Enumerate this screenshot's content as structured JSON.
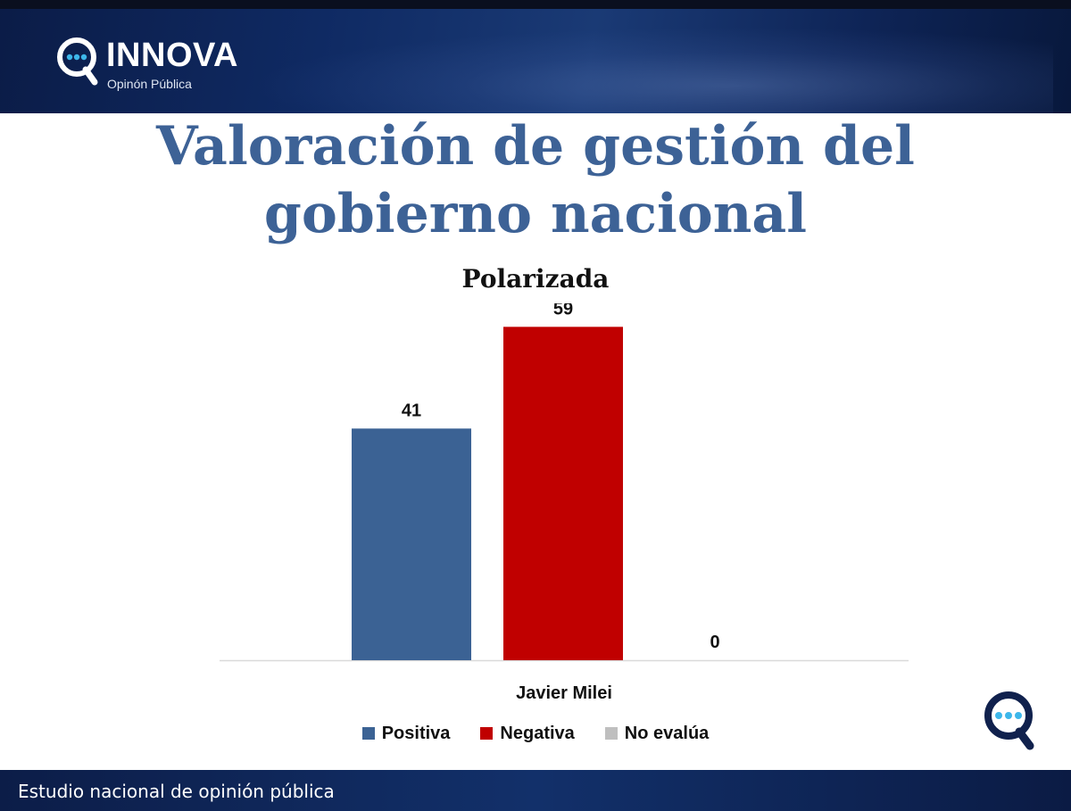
{
  "brand": {
    "name": "INNOVA",
    "subtitle": "Opinón Pública",
    "accent": "#3db7ea"
  },
  "page_title": {
    "line1": "Valoración de gestión del",
    "line2": "gobierno nacional"
  },
  "chart_data": {
    "type": "bar",
    "title": "Polarizada",
    "categories": [
      "Javier Milei"
    ],
    "series": [
      {
        "name": "Positiva",
        "values": [
          41
        ],
        "color": "#3b6294"
      },
      {
        "name": "Negativa",
        "values": [
          59
        ],
        "color": "#c00000"
      },
      {
        "name": "No evalúa",
        "values": [
          0
        ],
        "color": "#bfbfbf"
      }
    ],
    "ylim": [
      0,
      60
    ],
    "data_labels": true,
    "grid": false,
    "legend_position": "bottom"
  },
  "footer": {
    "text": "Estudio nacional de opinión pública"
  }
}
